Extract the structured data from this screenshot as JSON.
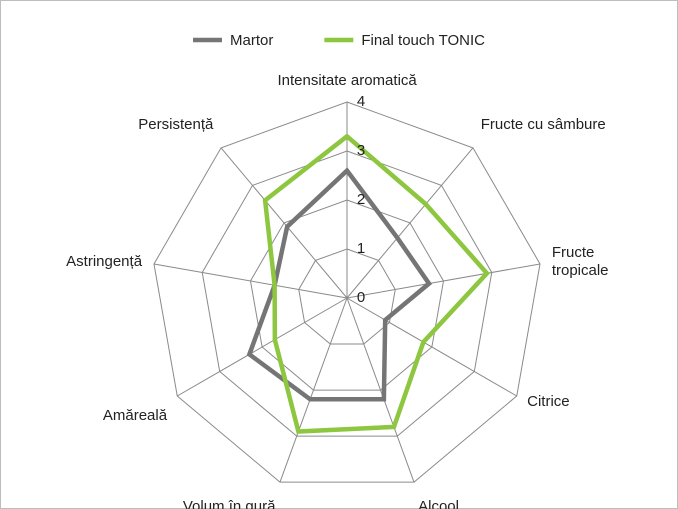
{
  "chart_data": {
    "type": "radar",
    "categories": [
      "Intensitate aromatică",
      "Fructe cu sâmbure",
      "Fructe tropicale",
      "Citrice",
      "Alcool",
      "Volum în gură",
      "Amăreală",
      "Astringență",
      "Persistență"
    ],
    "series": [
      {
        "name": "Martor",
        "color": "#757575",
        "values": [
          2.6,
          1.6,
          1.7,
          0.9,
          2.2,
          2.2,
          2.3,
          1.5,
          1.9
        ]
      },
      {
        "name": "Final touch TONIC",
        "color": "#8dc63f",
        "values": [
          3.3,
          2.5,
          2.9,
          1.8,
          2.8,
          2.9,
          1.7,
          1.5,
          2.6
        ]
      }
    ],
    "ylim": [
      0,
      4
    ],
    "yticks": [
      0,
      1,
      2,
      3,
      4
    ],
    "grid": true,
    "legend": "top"
  }
}
